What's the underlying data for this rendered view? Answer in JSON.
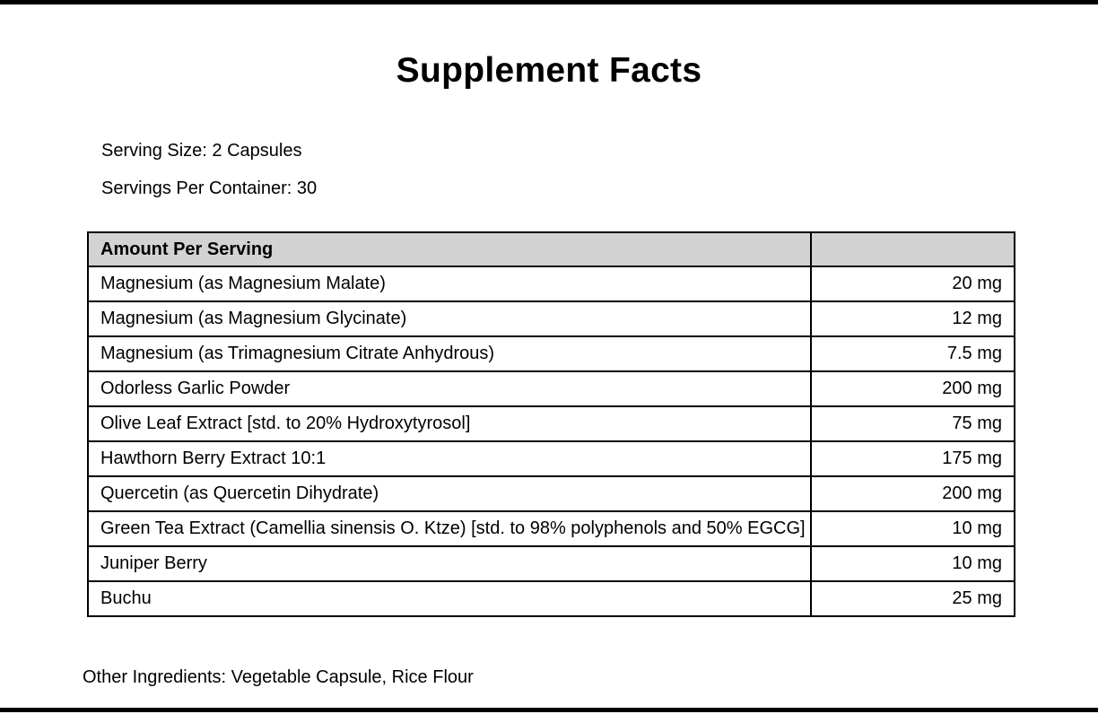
{
  "label": {
    "title": "Supplement Facts",
    "serving_size": "Serving Size: 2 Capsules",
    "servings_per_container": "Servings Per Container: 30",
    "table": {
      "header": "Amount Per Serving",
      "amount_header": "",
      "rows": [
        {
          "name": "Magnesium (as Magnesium Malate)",
          "amount": "20 mg"
        },
        {
          "name": "Magnesium (as Magnesium Glycinate)",
          "amount": "12 mg"
        },
        {
          "name": "Magnesium (as Trimagnesium Citrate Anhydrous)",
          "amount": "7.5 mg"
        },
        {
          "name": "Odorless Garlic Powder",
          "amount": "200 mg"
        },
        {
          "name": "Olive Leaf Extract [std. to 20% Hydroxytyrosol]",
          "amount": "75 mg"
        },
        {
          "name": "Hawthorn Berry Extract 10:1",
          "amount": "175 mg"
        },
        {
          "name": "Quercetin (as Quercetin Dihydrate)",
          "amount": "200 mg"
        },
        {
          "name": "Green Tea Extract (Camellia sinensis O. Ktze) [std. to 98% polyphenols and 50% EGCG]",
          "amount": "10 mg"
        },
        {
          "name": "Juniper Berry",
          "amount": "10 mg"
        },
        {
          "name": "Buchu",
          "amount": "25 mg"
        }
      ]
    },
    "other_ingredients": "Other Ingredients: Vegetable Capsule, Rice Flour",
    "colors": {
      "header_bg": "#d3d3d3",
      "border": "#000000",
      "text": "#000000",
      "background": "#ffffff"
    }
  }
}
